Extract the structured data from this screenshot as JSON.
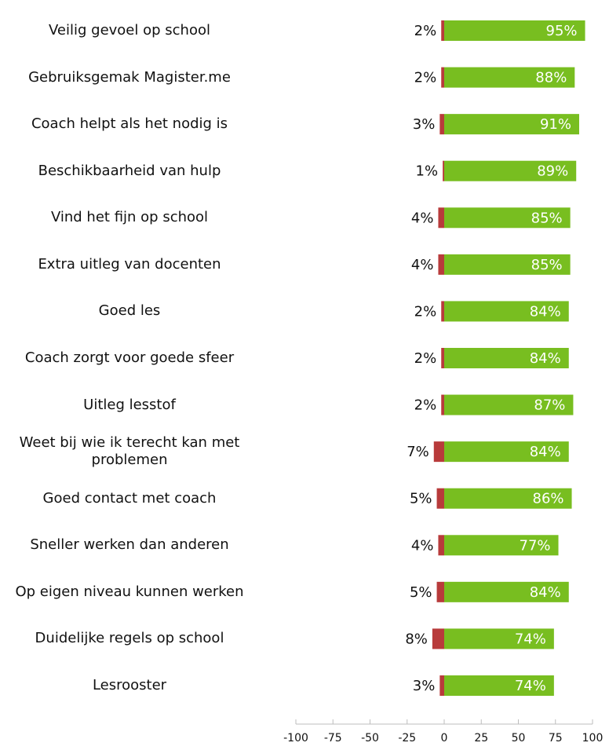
{
  "chart_data": {
    "type": "bar",
    "orientation": "horizontal",
    "stacked": true,
    "categories": [
      "Veilig gevoel op school",
      "Gebruiksgemak Magister.me",
      "Coach helpt als het nodig is",
      "Beschikbaarheid van hulp",
      "Vind het fijn op school",
      "Extra uitleg van docenten",
      "Goed les",
      "Coach zorgt voor goede sfeer",
      "Uitleg lesstof",
      "Weet bij wie ik terecht kan met problemen",
      "Goed contact met coach",
      "Sneller werken dan anderen",
      "Op eigen niveau kunnen werken",
      "Duidelijke regels op school",
      "Lesrooster"
    ],
    "series": [
      {
        "values": [
          -2,
          -2,
          -3,
          -1,
          -4,
          -4,
          -2,
          -2,
          -2,
          -7,
          -5,
          -4,
          -5,
          -8,
          -3
        ],
        "labels": [
          "2%",
          "2%",
          "3%",
          "1%",
          "4%",
          "4%",
          "2%",
          "2%",
          "2%",
          "7%",
          "5%",
          "4%",
          "5%",
          "8%",
          "3%"
        ],
        "color": "#b83b3b"
      },
      {
        "values": [
          95,
          88,
          91,
          89,
          85,
          85,
          84,
          84,
          87,
          84,
          86,
          77,
          84,
          74,
          74
        ],
        "labels": [
          "95%",
          "88%",
          "91%",
          "89%",
          "85%",
          "85%",
          "84%",
          "84%",
          "87%",
          "84%",
          "86%",
          "77%",
          "84%",
          "74%",
          "74%"
        ],
        "color": "#78be20"
      }
    ],
    "xlim": [
      -100,
      100
    ],
    "xticks": [
      "-100",
      "-75",
      "-50",
      "-25",
      "0",
      "25",
      "50",
      "75",
      "100"
    ],
    "grid": false,
    "legend": "none",
    "title": "",
    "xlabel": "",
    "ylabel": ""
  }
}
